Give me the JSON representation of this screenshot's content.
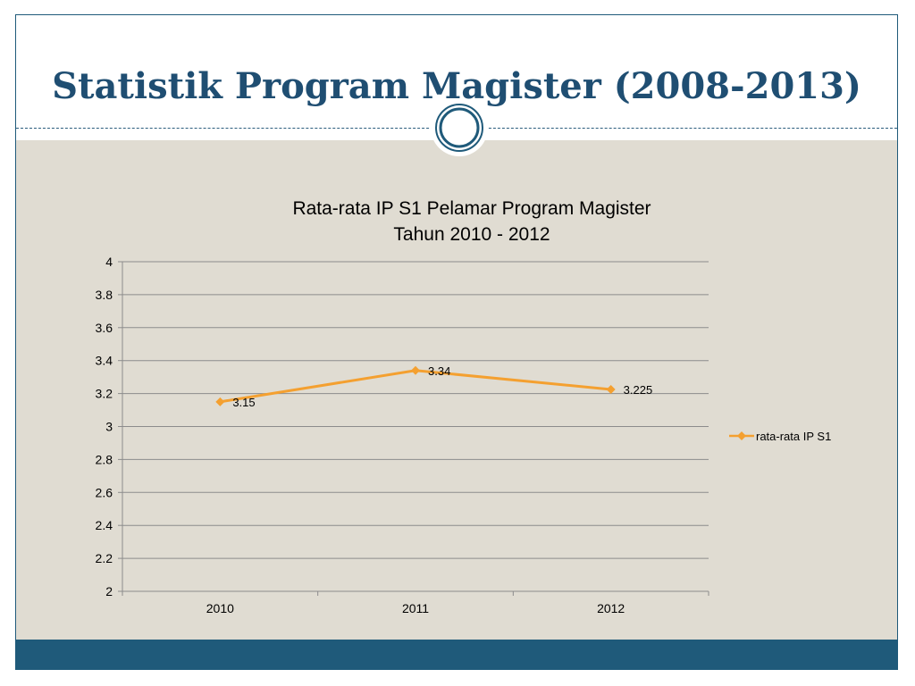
{
  "slide": {
    "title": "Statistik Program Magister (2008-2013)"
  },
  "colors": {
    "title": "#1f4e72",
    "accent": "#1f5a7a",
    "content_background": "#e0dcd2",
    "series_line": "#f4a030"
  },
  "chart_data": {
    "type": "line",
    "title_lines": [
      "Rata-rata IP S1 Pelamar Program Magister",
      "Tahun 2010 - 2012"
    ],
    "categories": [
      "2010",
      "2011",
      "2012"
    ],
    "series": [
      {
        "name": "rata-rata IP S1",
        "values": [
          3.15,
          3.34,
          3.225
        ],
        "labels": [
          "3.15",
          "3.34",
          "3.225"
        ],
        "marker": "diamond"
      }
    ],
    "ylim": [
      2,
      4
    ],
    "yticks": [
      "2",
      "2.2",
      "2.4",
      "2.6",
      "2.8",
      "3",
      "3.2",
      "3.4",
      "3.6",
      "3.8",
      "4"
    ],
    "grid": true,
    "legend_position": "right"
  }
}
